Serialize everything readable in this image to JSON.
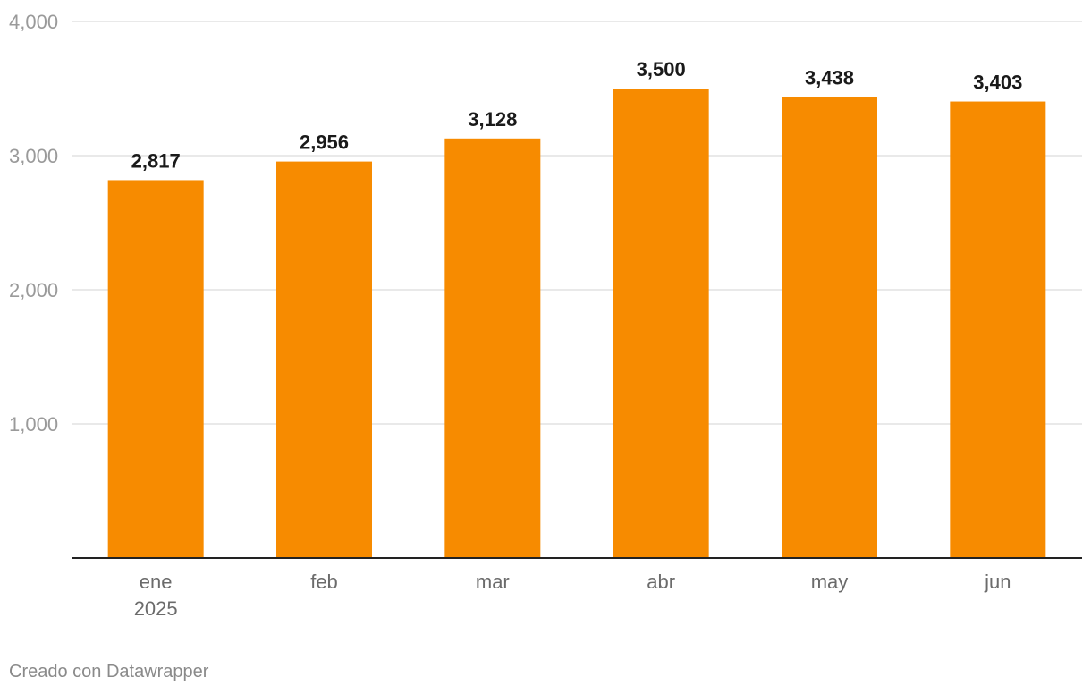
{
  "chart_data": {
    "type": "bar",
    "categories": [
      "ene",
      "feb",
      "mar",
      "abr",
      "may",
      "jun"
    ],
    "category_sublabels": [
      "2025",
      "",
      "",
      "",
      "",
      ""
    ],
    "values": [
      2817,
      2956,
      3128,
      3500,
      3438,
      3403
    ],
    "value_labels": [
      "2,817",
      "2,956",
      "3,128",
      "3,500",
      "3,438",
      "3,403"
    ],
    "title": "",
    "xlabel": "",
    "ylabel": "",
    "ylim": [
      0,
      4000
    ],
    "yticks": [
      1000,
      2000,
      3000,
      4000
    ],
    "ytick_labels": [
      "1,000",
      "2,000",
      "3,000",
      "4,000"
    ],
    "grid": true,
    "bar_color": "#f78b00",
    "gridline_color": "#e2e2e2",
    "baseline_color": "#222222"
  },
  "footer": {
    "credit": "Creado con Datawrapper"
  }
}
